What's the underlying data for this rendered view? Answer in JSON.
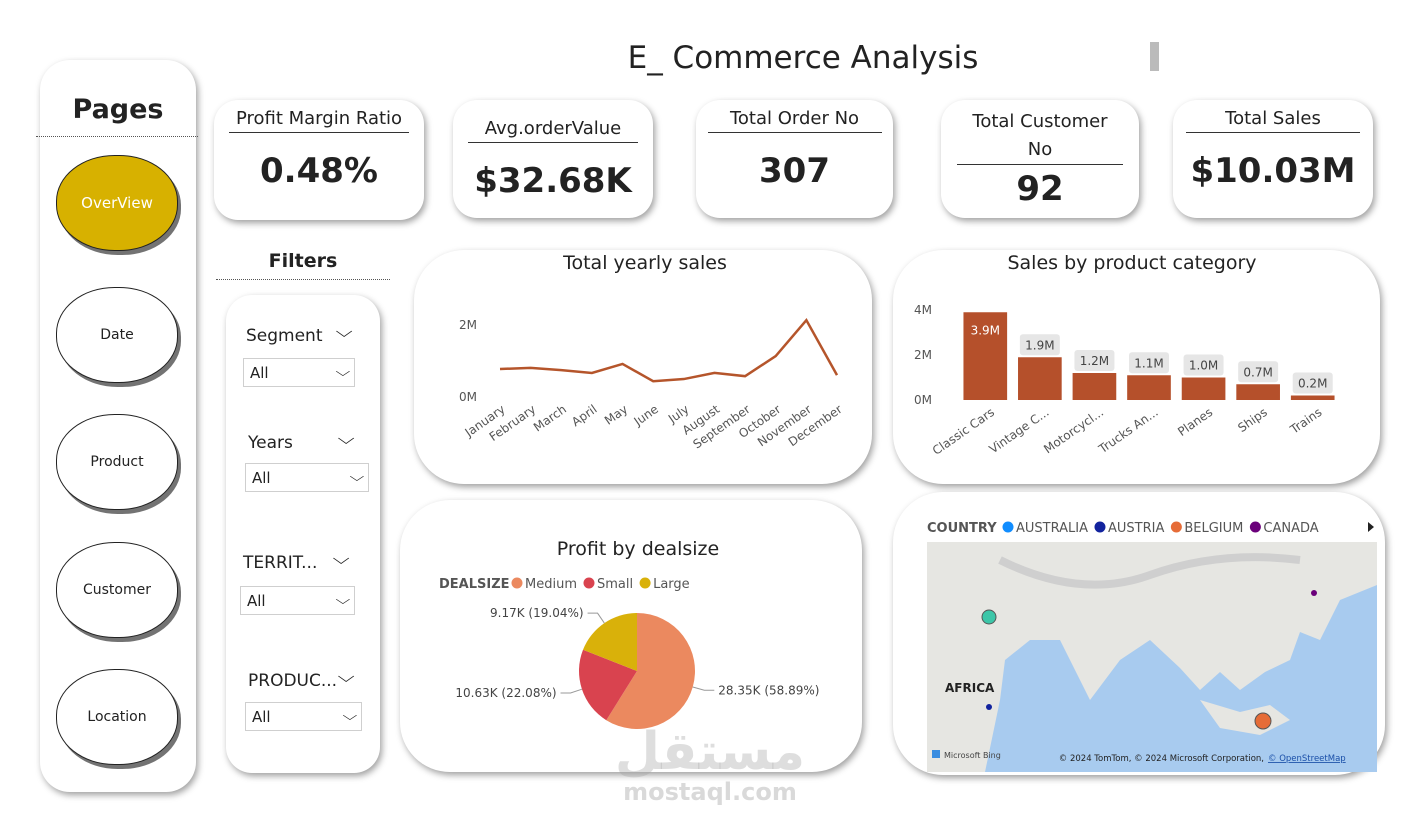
{
  "title": "E_ Commerce Analysis",
  "pages": {
    "title": "Pages",
    "buttons": [
      "OverView",
      "Date",
      "Product",
      "Customer",
      "Location"
    ]
  },
  "kpis": [
    {
      "label": "Profit Margin Ratio",
      "value": "0.48%"
    },
    {
      "label": "Avg.orderValue",
      "value": "$32.68K"
    },
    {
      "label": "Total Order No",
      "value": "307"
    },
    {
      "label": "Total Customer No",
      "value": "92"
    },
    {
      "label": "Total Sales",
      "value": "$10.03M"
    }
  ],
  "filters": {
    "title": "Filters",
    "items": [
      {
        "label": "Segment",
        "value": "All"
      },
      {
        "label": "Years",
        "value": "All"
      },
      {
        "label": "TERRIT...",
        "value": "All"
      },
      {
        "label": "PRODUC...",
        "value": "All"
      }
    ]
  },
  "chart_data": [
    {
      "type": "line",
      "title": "Total yearly sales",
      "categories": [
        "January",
        "February",
        "March",
        "April",
        "May",
        "June",
        "July",
        "August",
        "September",
        "October",
        "November",
        "December"
      ],
      "values": [
        0.78,
        0.81,
        0.75,
        0.67,
        0.92,
        0.44,
        0.5,
        0.67,
        0.58,
        1.14,
        2.14,
        0.61
      ],
      "color": "#b5552b",
      "ylim": [
        0,
        2.2
      ],
      "yticks": [
        {
          "value": 0,
          "label": "0M"
        },
        {
          "value": 2,
          "label": "2M"
        }
      ]
    },
    {
      "type": "bar",
      "title": "Sales by product category",
      "categories": [
        "Classic Cars",
        "Vintage C...",
        "Motorcycl...",
        "Trucks An...",
        "Planes",
        "Ships",
        "Trains"
      ],
      "values": [
        3.9,
        1.9,
        1.2,
        1.1,
        1.0,
        0.7,
        0.2
      ],
      "value_labels": [
        "3.9M",
        "1.9M",
        "1.2M",
        "1.1M",
        "1.0M",
        "0.7M",
        "0.2M"
      ],
      "color": "#b5502b",
      "ylim": [
        0,
        4
      ],
      "yticks": [
        {
          "value": 0,
          "label": "0M"
        },
        {
          "value": 2,
          "label": "2M"
        },
        {
          "value": 4,
          "label": "4M"
        }
      ]
    },
    {
      "type": "pie",
      "title": "Profit by dealsize",
      "legend_title": "DEALSIZE",
      "categories": [
        "Medium",
        "Small",
        "Large"
      ],
      "values": [
        28.35,
        10.63,
        9.17
      ],
      "value_labels": [
        "28.35K (58.89%)",
        "10.63K (22.08%)",
        "9.17K (19.04%)"
      ],
      "colors": [
        "#eb895f",
        "#d9434f",
        "#d9b10a"
      ]
    }
  ],
  "map": {
    "legend_title": "COUNTRY",
    "legend": [
      {
        "name": "AUSTRALIA",
        "color": "#118dff"
      },
      {
        "name": "AUSTRIA",
        "color": "#12239e"
      },
      {
        "name": "BELGIUM",
        "color": "#e66c37"
      },
      {
        "name": "CANADA",
        "color": "#6b007b"
      }
    ],
    "region_label": "AFRICA",
    "attribution": "© 2024 TomTom, © 2024 Microsoft Corporation,",
    "attribution_link": "© OpenStreetMap",
    "logo": "Microsoft Bing"
  },
  "watermark": {
    "arabic": "مستقل",
    "latin": "mostaql.com"
  }
}
